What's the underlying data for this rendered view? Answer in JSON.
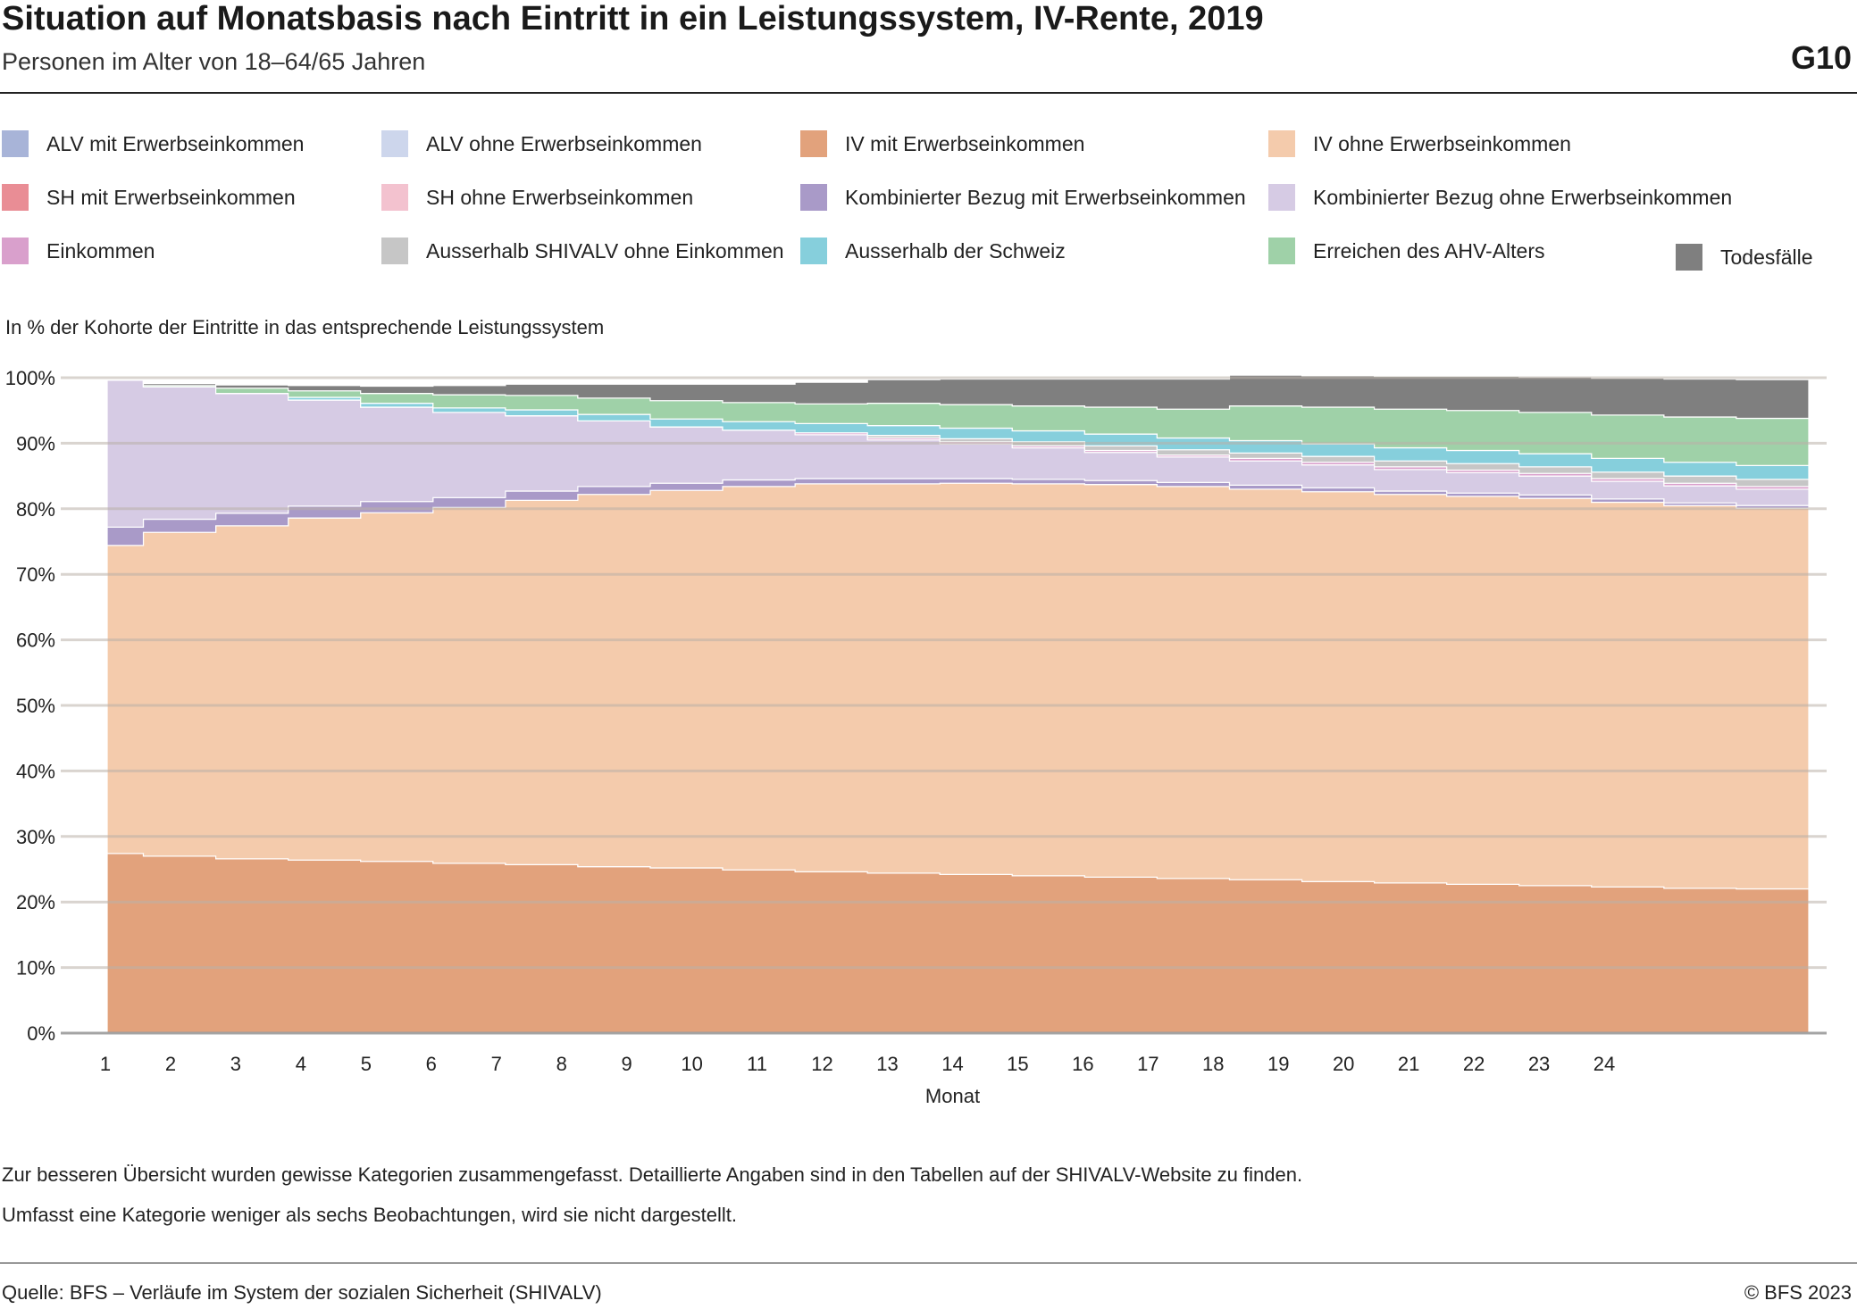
{
  "header": {
    "title": "Situation auf Monatsbasis nach Eintritt in ein Leistungssystem, IV-Rente, 2019",
    "subtitle": "Personen im Alter von 18–64/65 Jahren",
    "code": "G10"
  },
  "legend": [
    {
      "label": "ALV mit Erwerbseinkommen",
      "color": "#a8b4d8"
    },
    {
      "label": "ALV ohne Erwerbseinkommen",
      "color": "#cdd6ec"
    },
    {
      "label": "IV mit Erwerbseinkommen",
      "color": "#e2a27c"
    },
    {
      "label": "IV ohne Erwerbseinkommen",
      "color": "#f4cbac"
    },
    {
      "label": "SH mit Erwerbseinkommen",
      "color": "#e98d95"
    },
    {
      "label": "SH ohne Erwerbseinkommen",
      "color": "#f3c2cf"
    },
    {
      "label": "Kombinierter Bezug mit Erwerbseinkommen",
      "color": "#a99ac8"
    },
    {
      "label": "Kombinierter Bezug ohne Erwerbseinkommen",
      "color": "#d6cbe4"
    },
    {
      "label": "Einkommen",
      "color": "#d9a0cc"
    },
    {
      "label": "Ausserhalb SHIVALV ohne Einkommen",
      "color": "#c6c6c6"
    },
    {
      "label": "Ausserhalb der Schweiz",
      "color": "#86cfdc"
    },
    {
      "label": "Erreichen des AHV-Alters",
      "color": "#9fd1a8"
    },
    {
      "label": "Todesfälle",
      "color": "#7f7f7f"
    }
  ],
  "unit_label": "In % der Kohorte der Eintritte in das entsprechende Leistungssystem",
  "chart_data": {
    "type": "area",
    "stacked": true,
    "step": true,
    "x": [
      1,
      2,
      3,
      4,
      5,
      6,
      7,
      8,
      9,
      10,
      11,
      12,
      13,
      14,
      15,
      16,
      17,
      18,
      19,
      20,
      21,
      22,
      23,
      24
    ],
    "xlabel": "Monat",
    "ylabel": "",
    "ylim": [
      0,
      100
    ],
    "yticks": [
      "0%",
      "10%",
      "20%",
      "30%",
      "40%",
      "50%",
      "60%",
      "70%",
      "80%",
      "90%",
      "100%"
    ],
    "grid": true,
    "series": [
      {
        "name": "ALV mit Erwerbseinkommen",
        "color": "#a8b4d8",
        "values": [
          0,
          0,
          0,
          0,
          0,
          0,
          0,
          0,
          0,
          0,
          0,
          0,
          0,
          0,
          0,
          0,
          0,
          0,
          0,
          0,
          0,
          0,
          0,
          0
        ]
      },
      {
        "name": "IV mit Erwerbseinkommen",
        "color": "#e2a27c",
        "values": [
          27.4,
          27.0,
          26.6,
          26.4,
          26.2,
          25.9,
          25.7,
          25.4,
          25.2,
          24.9,
          24.6,
          24.4,
          24.2,
          24.0,
          23.8,
          23.6,
          23.4,
          23.1,
          22.9,
          22.7,
          22.5,
          22.3,
          22.1,
          22.0
        ]
      },
      {
        "name": "IV ohne Erwerbseinkommen",
        "color": "#f4cbac",
        "values": [
          47.0,
          49.4,
          50.8,
          52.2,
          53.2,
          54.3,
          55.6,
          56.8,
          57.6,
          58.5,
          59.2,
          59.4,
          59.7,
          59.8,
          59.9,
          59.8,
          59.6,
          59.5,
          59.3,
          59.2,
          59.1,
          58.7,
          58.4,
          58.1
        ]
      },
      {
        "name": "Kombinierter Bezug mit Erwerbseinkommen",
        "color": "#a99ac8",
        "values": [
          2.8,
          2.0,
          1.9,
          1.8,
          1.7,
          1.5,
          1.4,
          1.2,
          1.1,
          1.0,
          0.8,
          0.8,
          0.7,
          0.7,
          0.6,
          0.6,
          0.6,
          0.6,
          0.5,
          0.5,
          0.5,
          0.5,
          0.4,
          0.4
        ]
      },
      {
        "name": "Kombinierter Bezug ohne Erwerbseinkommen",
        "color": "#d6cbe4",
        "values": [
          22.4,
          20.2,
          18.3,
          16.2,
          14.4,
          13.0,
          11.5,
          10.0,
          8.6,
          7.6,
          6.7,
          5.9,
          5.3,
          4.8,
          4.3,
          3.9,
          3.7,
          3.5,
          3.3,
          3.1,
          2.9,
          2.7,
          2.6,
          2.5
        ]
      },
      {
        "name": "Einkommen",
        "color": "#d9a0cc",
        "values": [
          0,
          0,
          0,
          0,
          0,
          0,
          0,
          0,
          0,
          0,
          0.3,
          0.3,
          0.3,
          0.3,
          0.3,
          0.3,
          0.4,
          0.4,
          0.4,
          0.4,
          0.4,
          0.4,
          0.4,
          0.4
        ]
      },
      {
        "name": "Ausserhalb SHIVALV ohne Einkommen",
        "color": "#c6c6c6",
        "values": [
          0,
          0,
          0,
          0,
          0,
          0,
          0,
          0,
          0,
          0,
          0,
          0.4,
          0.5,
          0.6,
          0.7,
          0.8,
          0.8,
          0.9,
          0.9,
          1.0,
          1.0,
          1.0,
          1.1,
          1.1
        ]
      },
      {
        "name": "Ausserhalb der Schweiz",
        "color": "#86cfdc",
        "values": [
          0,
          0,
          0,
          0.4,
          0.6,
          0.7,
          0.9,
          1.0,
          1.2,
          1.3,
          1.4,
          1.5,
          1.6,
          1.7,
          1.8,
          1.8,
          1.9,
          1.9,
          2.0,
          2.0,
          2.0,
          2.1,
          2.1,
          2.1
        ]
      },
      {
        "name": "Erreichen des AHV-Alters",
        "color": "#9fd1a8",
        "values": [
          0,
          0.2,
          0.8,
          1.0,
          1.5,
          2.0,
          2.2,
          2.5,
          2.8,
          2.9,
          3.0,
          3.4,
          3.6,
          3.8,
          4.1,
          4.4,
          5.3,
          5.6,
          5.9,
          6.1,
          6.3,
          6.6,
          6.9,
          7.2
        ]
      },
      {
        "name": "Todesfälle",
        "color": "#7f7f7f",
        "values": [
          0,
          0.3,
          0.5,
          0.8,
          1.1,
          1.4,
          1.7,
          2.1,
          2.5,
          2.8,
          3.3,
          3.6,
          3.9,
          4.1,
          4.3,
          4.6,
          4.7,
          4.8,
          5.0,
          5.2,
          5.4,
          5.6,
          5.8,
          5.9
        ]
      }
    ]
  },
  "notes": [
    "Zur besseren Übersicht wurden gewisse Kategorien zusammengefasst. Detaillierte Angaben sind in den Tabellen auf der SHIVALV-Website zu finden.",
    "Umfasst eine Kategorie weniger als sechs Beobachtungen, wird sie nicht dargestellt."
  ],
  "footer": {
    "source": "Quelle: BFS – Verläufe im System der sozialen Sicherheit (SHIVALV)",
    "copyright": "© BFS 2023"
  }
}
